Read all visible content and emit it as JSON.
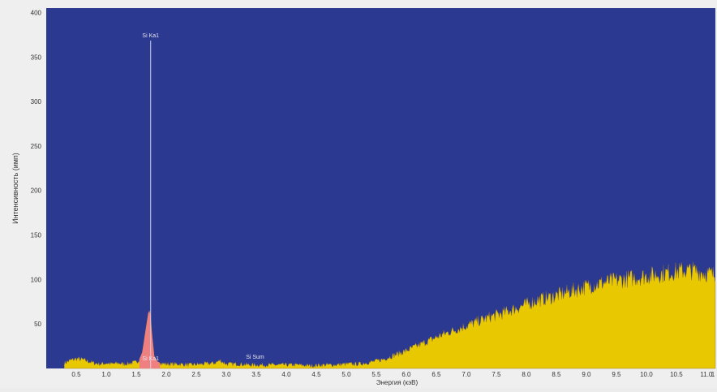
{
  "chart_data": {
    "type": "area",
    "title": "",
    "xlabel": "Энергия (кэВ)",
    "ylabel": "Интенсивность (имп)",
    "xlim": [
      0,
      11.15
    ],
    "ylim": [
      0,
      405
    ],
    "x_ticks": [
      "0.5",
      "1.0",
      "1.5",
      "2.0",
      "2.5",
      "3.0",
      "3.5",
      "4.0",
      "4.5",
      "5.0",
      "5.5",
      "6.0",
      "6.5",
      "7.0",
      "7.5",
      "8.0",
      "8.5",
      "9.0",
      "9.5",
      "10.0",
      "10.5",
      "11.0",
      "1"
    ],
    "y_ticks": [
      "50",
      "100",
      "150",
      "200",
      "250",
      "300",
      "350",
      "400"
    ],
    "grid": false,
    "plot_background": "#2b3990",
    "spectrum_color": "#e8c800",
    "peak_color": "#f08080",
    "series": [
      {
        "x": [
          0.3,
          0.4,
          0.5,
          0.6,
          0.7,
          0.8,
          0.9,
          1.0,
          1.1,
          1.2,
          1.3,
          1.4,
          1.5,
          1.55,
          1.6,
          1.65,
          1.7,
          1.72,
          1.74,
          1.76,
          1.8,
          1.85,
          1.9,
          2.0,
          2.2,
          2.4,
          2.6,
          2.8,
          2.9,
          3.0,
          3.1,
          3.2,
          3.4,
          3.6,
          3.8,
          4.0,
          4.2,
          4.4,
          4.6,
          4.8,
          5.0,
          5.2,
          5.4,
          5.6,
          5.8,
          6.0,
          6.2,
          6.4,
          6.6,
          6.8,
          7.0,
          7.2,
          7.4,
          7.6,
          7.8,
          8.0,
          8.2,
          8.4,
          8.6,
          8.8,
          9.0,
          9.2,
          9.4,
          9.6,
          9.8,
          10.0,
          10.2,
          10.4,
          10.6,
          10.8,
          11.0,
          11.15
        ],
        "values": [
          6,
          9,
          11,
          10,
          8,
          6,
          5,
          6,
          5,
          6,
          5,
          6,
          7,
          10,
          18,
          40,
          62,
          65,
          58,
          40,
          14,
          8,
          6,
          5,
          5,
          4,
          5,
          6,
          9,
          5,
          5,
          5,
          4,
          4,
          4,
          4,
          4,
          3,
          4,
          4,
          5,
          5,
          7,
          10,
          15,
          20,
          26,
          32,
          38,
          43,
          48,
          53,
          58,
          62,
          67,
          72,
          77,
          80,
          84,
          88,
          92,
          95,
          98,
          100,
          102,
          104,
          106,
          108,
          110,
          110,
          107,
          105
        ]
      }
    ],
    "annotations": [
      {
        "label": "Si Ka1",
        "x": 1.74,
        "y": 372,
        "marker_line": true
      },
      {
        "label": "Si Ka1",
        "x": 1.74,
        "y": 9
      },
      {
        "label": "Si Sum",
        "x": 3.48,
        "y": 11
      }
    ]
  }
}
